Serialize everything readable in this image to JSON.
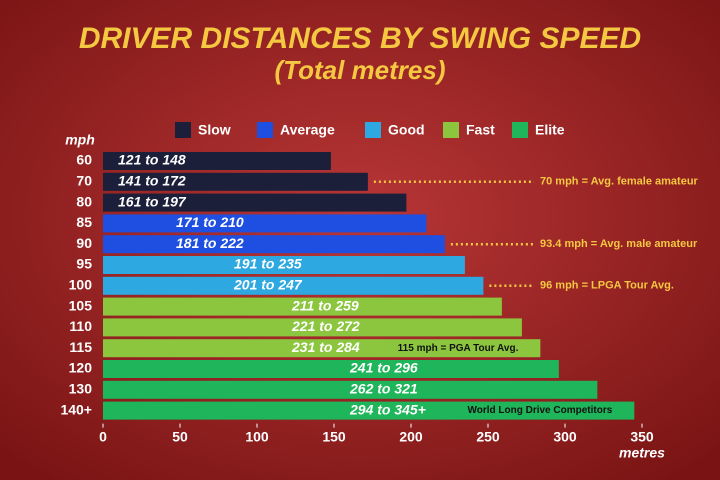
{
  "chart_data": {
    "type": "hbar",
    "title": "DRIVER DISTANCES BY SWING SPEED",
    "subtitle": "(Total metres)",
    "y_label": "mph",
    "x_label": "metres",
    "categories": [
      "60",
      "70",
      "80",
      "85",
      "90",
      "95",
      "100",
      "105",
      "110",
      "115",
      "120",
      "130",
      "140+"
    ],
    "series": [
      {
        "name": "Slow",
        "color": "#1c1f3a",
        "values": [
          148,
          172,
          197,
          null,
          null,
          null,
          null,
          null,
          null,
          null,
          null,
          null,
          null
        ],
        "value_labels": [
          "121 to 148",
          "141 to 172",
          "161 to 197",
          null,
          null,
          null,
          null,
          null,
          null,
          null,
          null,
          null,
          null
        ]
      },
      {
        "name": "Average",
        "color": "#1f4fe0",
        "values": [
          null,
          null,
          null,
          210,
          222,
          null,
          null,
          null,
          null,
          null,
          null,
          null,
          null
        ],
        "value_labels": [
          null,
          null,
          null,
          "171 to 210",
          "181 to 222",
          null,
          null,
          null,
          null,
          null,
          null,
          null,
          null
        ]
      },
      {
        "name": "Good",
        "color": "#2ea8e0",
        "values": [
          null,
          null,
          null,
          null,
          null,
          235,
          247,
          null,
          null,
          null,
          null,
          null,
          null
        ],
        "value_labels": [
          null,
          null,
          null,
          null,
          null,
          "191 to 235",
          "201 to 247",
          null,
          null,
          null,
          null,
          null,
          null
        ]
      },
      {
        "name": "Fast",
        "color": "#8cc63f",
        "values": [
          null,
          null,
          null,
          null,
          null,
          null,
          null,
          259,
          272,
          284,
          null,
          null,
          null
        ],
        "value_labels": [
          null,
          null,
          null,
          null,
          null,
          null,
          null,
          "211 to 259",
          "221 to 272",
          "231 to 284",
          null,
          null,
          null
        ]
      },
      {
        "name": "Elite",
        "color": "#1fb55a",
        "values": [
          null,
          null,
          null,
          null,
          null,
          null,
          null,
          null,
          null,
          null,
          296,
          321,
          345
        ],
        "value_labels": [
          null,
          null,
          null,
          null,
          null,
          null,
          null,
          null,
          null,
          null,
          "241 to 296",
          "262 to 321",
          "294 to 345+"
        ]
      }
    ],
    "annotations": [
      {
        "category": "70",
        "text": "70 mph = Avg. female amateur"
      },
      {
        "category": "90",
        "text": "93.4 mph = Avg. male amateur"
      },
      {
        "category": "100",
        "text": "96 mph = LPGA Tour Avg."
      },
      {
        "category": "115",
        "text": "115 mph = PGA Tour Avg."
      },
      {
        "category": "140+",
        "text": "World Long Drive Competitors"
      }
    ],
    "xlim": [
      0,
      350
    ],
    "xticks": [
      0,
      50,
      100,
      150,
      200,
      250,
      300,
      350
    ]
  }
}
